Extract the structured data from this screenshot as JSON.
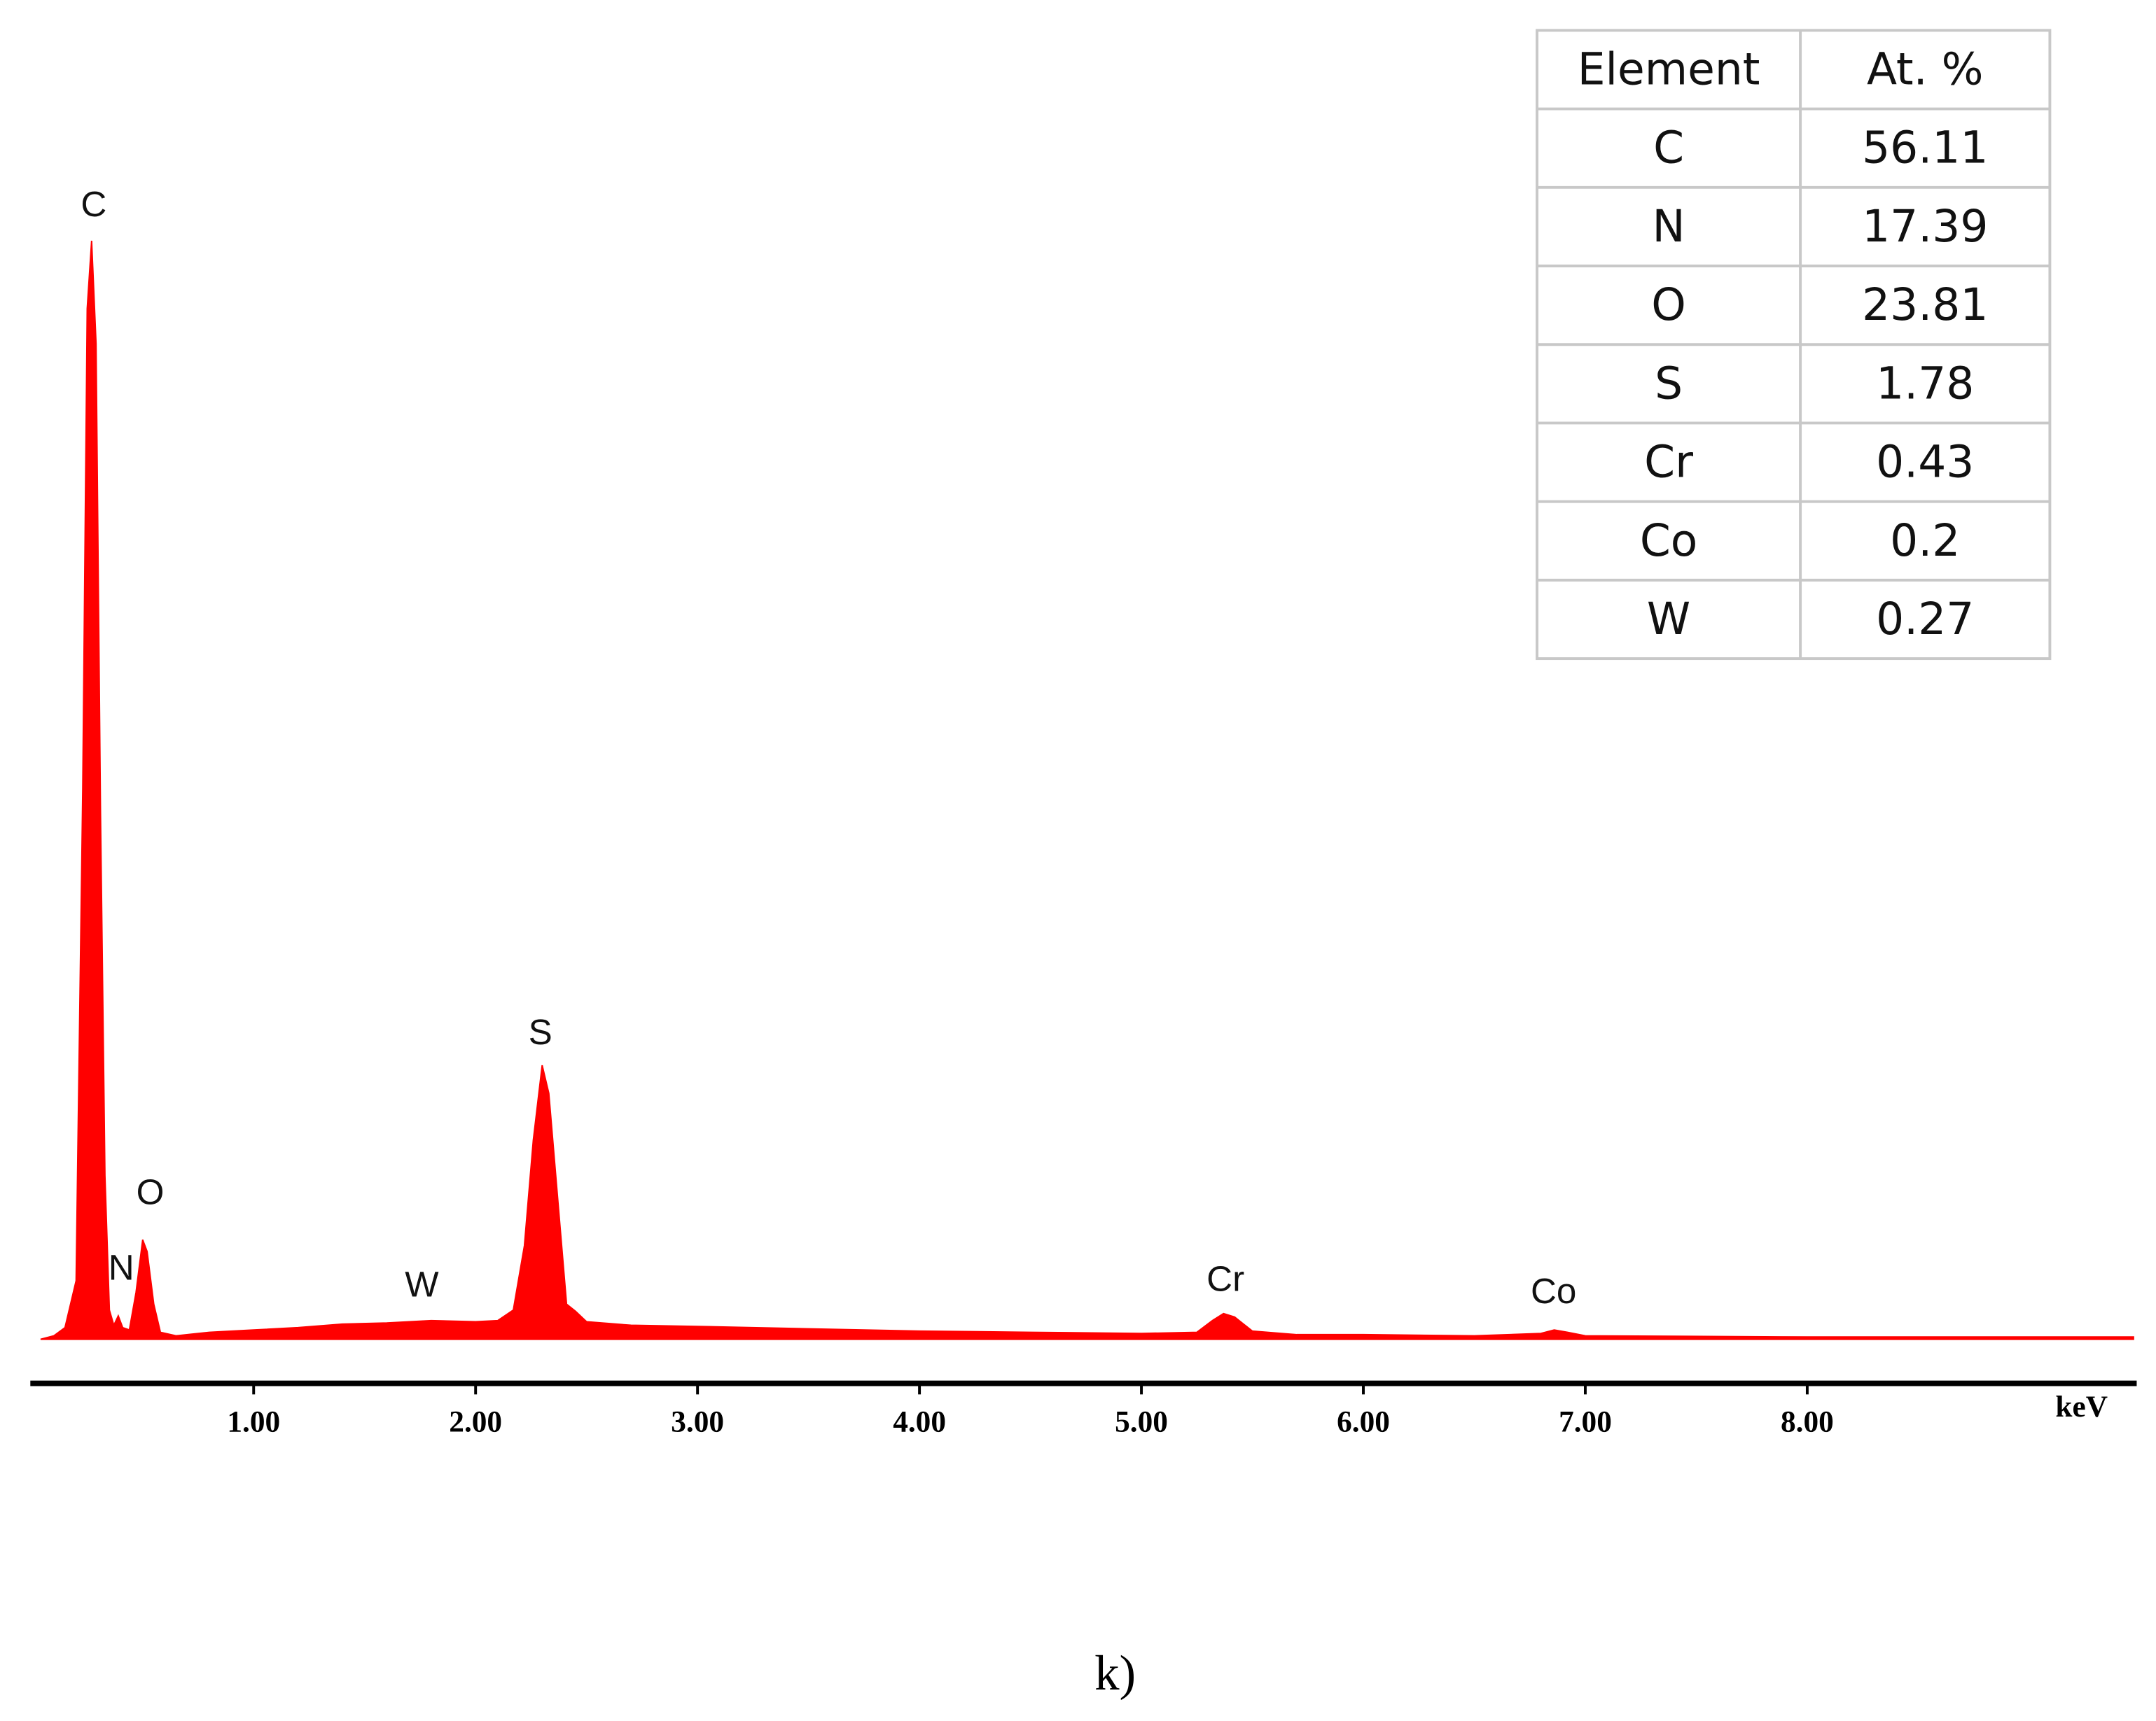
{
  "chart_data": {
    "type": "spectrum",
    "color": "#ff0000",
    "x_label": "keV",
    "caption": "k)",
    "xlim": [
      0,
      9.5
    ],
    "ylim": [
      0,
      100
    ],
    "xticks": [
      {
        "value": 1,
        "label": "1.00"
      },
      {
        "value": 2,
        "label": "2.00"
      },
      {
        "value": 3,
        "label": "3.00"
      },
      {
        "value": 4,
        "label": "4.00"
      },
      {
        "value": 5,
        "label": "5.00"
      },
      {
        "value": 6,
        "label": "6.00"
      },
      {
        "value": 7,
        "label": "7.00"
      },
      {
        "value": 8,
        "label": "8.00"
      }
    ],
    "x": [
      0.04,
      0.1,
      0.15,
      0.2,
      0.23,
      0.25,
      0.27,
      0.29,
      0.31,
      0.33,
      0.35,
      0.37,
      0.39,
      0.41,
      0.44,
      0.47,
      0.5,
      0.52,
      0.55,
      0.58,
      0.65,
      0.8,
      1.0,
      1.2,
      1.4,
      1.6,
      1.8,
      2.0,
      2.1,
      2.17,
      2.22,
      2.26,
      2.3,
      2.33,
      2.37,
      2.41,
      2.45,
      2.5,
      2.7,
      3.0,
      3.5,
      4.0,
      4.5,
      5.0,
      5.25,
      5.32,
      5.37,
      5.42,
      5.5,
      5.7,
      6.0,
      6.5,
      6.8,
      6.86,
      6.92,
      7.0,
      8.0,
      9.0,
      9.47
    ],
    "values": [
      0,
      0.3,
      1.0,
      5,
      47,
      88,
      93.8,
      85,
      45,
      14,
      2.5,
      1.2,
      2.0,
      1.0,
      0.8,
      4,
      8.5,
      7.5,
      3,
      0.6,
      0.3,
      0.6,
      0.8,
      1.0,
      1.3,
      1.4,
      1.6,
      1.5,
      1.6,
      2.5,
      8,
      17,
      23.4,
      21,
      12,
      3,
      2.4,
      1.5,
      1.2,
      1.1,
      0.9,
      0.7,
      0.6,
      0.5,
      0.6,
      1.6,
      2.2,
      1.9,
      0.7,
      0.4,
      0.4,
      0.3,
      0.5,
      0.8,
      0.6,
      0.3,
      0.2,
      0.2,
      0.2
    ],
    "peak_labels": [
      "C",
      "N",
      "O",
      "W",
      "S",
      "Cr",
      "Co"
    ],
    "table": {
      "header": [
        "Element",
        "At. %"
      ],
      "rows": [
        [
          "C",
          56.11
        ],
        [
          "N",
          17.39
        ],
        [
          "O",
          23.81
        ],
        [
          "S",
          1.78
        ],
        [
          "Cr",
          0.43
        ],
        [
          "Co",
          0.2
        ],
        [
          "W",
          0.27
        ]
      ]
    }
  }
}
